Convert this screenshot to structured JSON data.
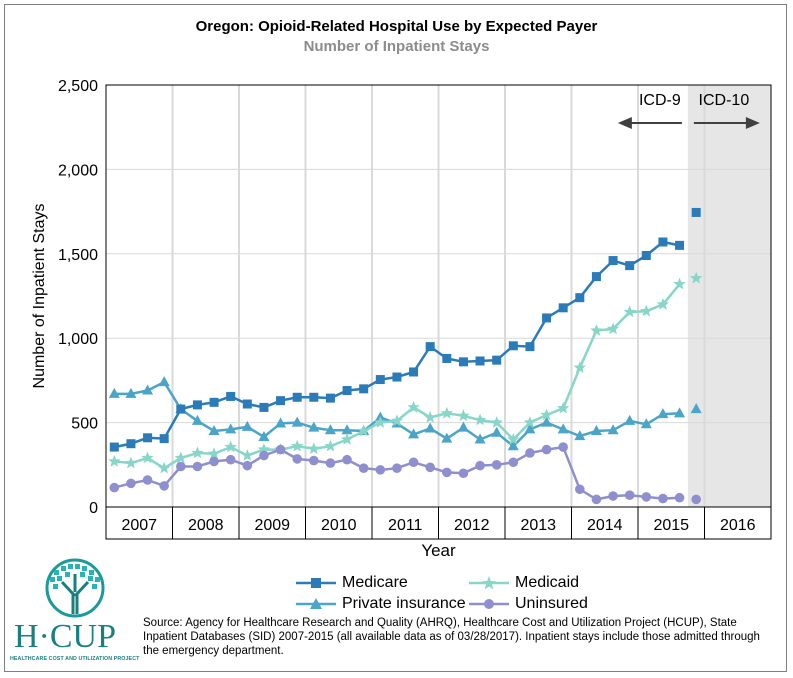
{
  "chart_data": {
    "type": "line",
    "title": "Oregon: Opioid-Related Hospital Use by Expected Payer",
    "subtitle": "Number of Inpatient Stays",
    "xlabel": "Year",
    "ylabel": "Number of Inpatient Stays",
    "ylim": [
      0,
      2500
    ],
    "yticks": [
      "0",
      "500",
      "1,000",
      "1,500",
      "2,000",
      "2,500"
    ],
    "year_labels": [
      "2007",
      "2008",
      "2009",
      "2010",
      "2011",
      "2012",
      "2013",
      "2014",
      "2015",
      "2016"
    ],
    "x_unit": "quarter",
    "x_start": "2007 Q1",
    "grid": true,
    "icd9_label": "ICD-9",
    "icd10_label": "ICD-10",
    "shaded_region": "2015 Q4 onward",
    "series": [
      {
        "name": "Medicare",
        "color": "#2b7bb9",
        "marker": "square",
        "values": [
          355,
          375,
          410,
          405,
          580,
          605,
          620,
          655,
          610,
          590,
          630,
          650,
          650,
          645,
          690,
          700,
          755,
          770,
          800,
          950,
          880,
          860,
          865,
          870,
          955,
          950,
          1120,
          1180,
          1240,
          1365,
          1460,
          1430,
          1490,
          1570,
          1550
        ],
        "q4_2015": 1745
      },
      {
        "name": "Private insurance",
        "color": "#4aa5c9",
        "marker": "triangle",
        "values": [
          670,
          670,
          690,
          740,
          580,
          510,
          450,
          460,
          475,
          415,
          495,
          500,
          470,
          455,
          455,
          450,
          530,
          495,
          430,
          465,
          405,
          470,
          400,
          440,
          360,
          460,
          500,
          460,
          420,
          450,
          455,
          510,
          490,
          550,
          555
        ],
        "q4_2015": 580
      },
      {
        "name": "Medicaid",
        "color": "#88d6c8",
        "marker": "star",
        "values": [
          270,
          260,
          290,
          230,
          290,
          320,
          315,
          355,
          305,
          340,
          340,
          360,
          345,
          360,
          400,
          450,
          500,
          510,
          590,
          530,
          555,
          540,
          515,
          500,
          400,
          500,
          545,
          585,
          825,
          1045,
          1055,
          1155,
          1160,
          1200,
          1320
        ],
        "q4_2015": 1355
      },
      {
        "name": "Uninsured",
        "color": "#8f8fcf",
        "marker": "circle",
        "values": [
          115,
          140,
          160,
          125,
          240,
          240,
          270,
          280,
          245,
          305,
          340,
          285,
          275,
          260,
          280,
          230,
          220,
          230,
          265,
          235,
          205,
          200,
          245,
          250,
          265,
          320,
          340,
          355,
          105,
          45,
          65,
          70,
          60,
          50,
          55
        ],
        "q4_2015": 45
      }
    ]
  },
  "source_note": "Source: Agency for Healthcare Research and Quality (AHRQ), Healthcare Cost and Utilization Project (HCUP), State Inpatient Databases (SID) 2007-2015 (all available data as of 03/28/2017). Inpatient stays include those admitted through the emergency department.",
  "logo": {
    "text": "H·CUP",
    "subtext": "HEALTHCARE COST AND UTILIZATION PROJECT"
  }
}
